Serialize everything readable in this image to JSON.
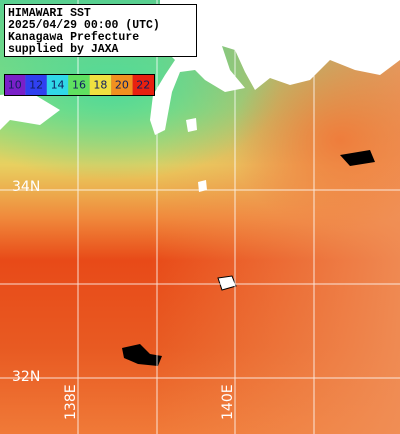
{
  "header": {
    "lines": [
      "HIMAWARI SST",
      "2025/04/29 00:00 (UTC)",
      "Kanagawa Prefecture",
      "supplied by JAXA"
    ]
  },
  "legend": {
    "items": [
      {
        "label": 10,
        "color": "#7a20c8"
      },
      {
        "label": 12,
        "color": "#3040f0"
      },
      {
        "label": 14,
        "color": "#30d8e8"
      },
      {
        "label": 16,
        "color": "#60e060"
      },
      {
        "label": 18,
        "color": "#f0e040"
      },
      {
        "label": 20,
        "color": "#f09020"
      },
      {
        "label": 22,
        "color": "#e82010"
      }
    ]
  },
  "grid": {
    "lat_labels": [
      "34N",
      "32N"
    ],
    "lon_labels": [
      "138E",
      "140E"
    ]
  }
}
